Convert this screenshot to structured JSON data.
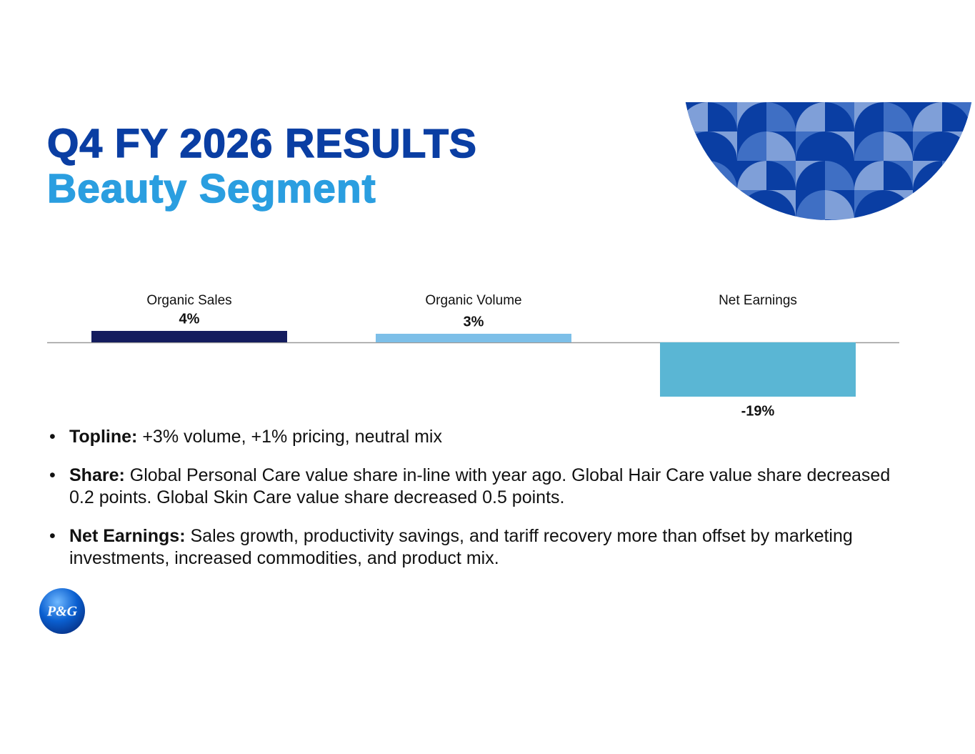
{
  "header": {
    "title": "Q4 FY 2026 RESULTS",
    "subtitle": "Beauty Segment"
  },
  "chart_data": {
    "type": "bar",
    "categories": [
      "Organic Sales",
      "Organic Volume",
      "Net Earnings"
    ],
    "values": [
      4,
      3,
      -19
    ],
    "value_labels": [
      "4%",
      "3%",
      "-19%"
    ],
    "colors": [
      "#141c5e",
      "#7dbfe8",
      "#5ab6d4"
    ]
  },
  "bullets": [
    {
      "lead": "Topline:",
      "text": "+3% volume, +1% pricing, neutral mix"
    },
    {
      "lead": "Share:",
      "text": "Global Personal Care value share in-line with year ago. Global Hair Care value share decreased 0.2 points. Global Skin Care value share decreased 0.5 points."
    },
    {
      "lead": "Net Earnings:",
      "text": "Sales growth, productivity savings, and tariff recovery more than offset by marketing investments, increased commodities, and product mix."
    }
  ],
  "logo": {
    "text": "P&G"
  }
}
